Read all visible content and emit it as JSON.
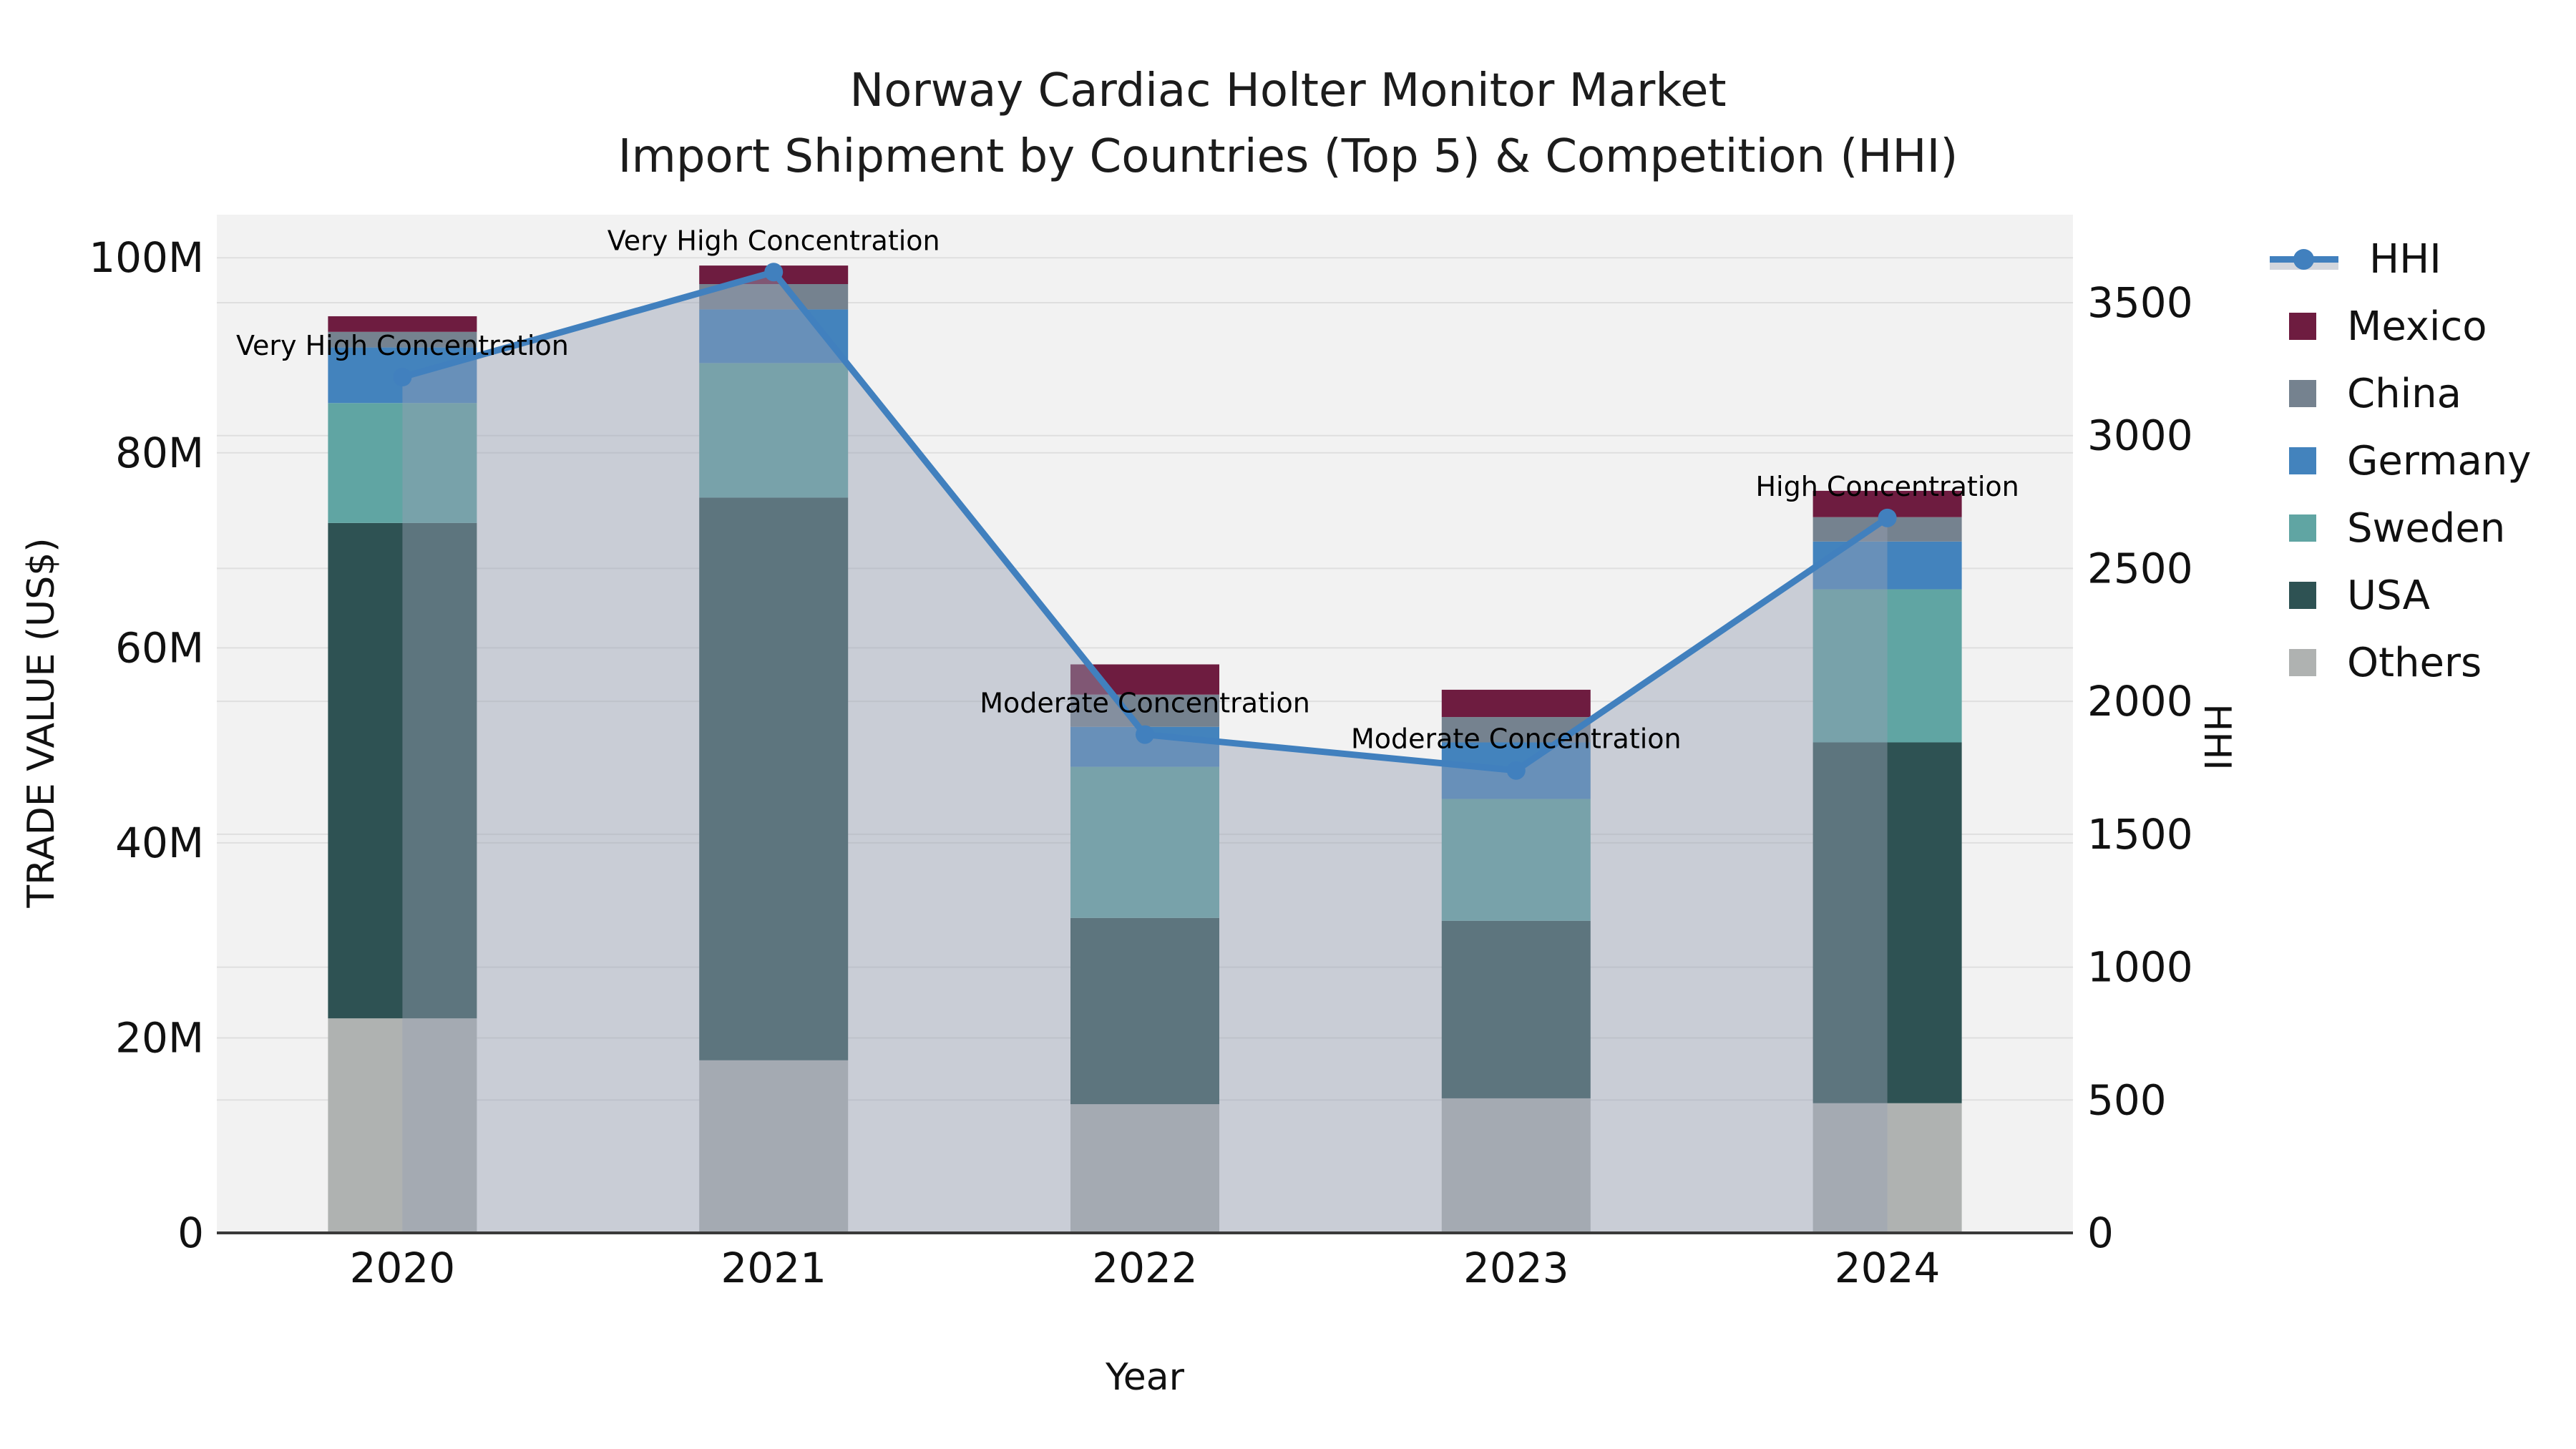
{
  "title": {
    "line1": "Norway Cardiac Holter Monitor Market",
    "line2": "Import Shipment by Countries (Top 5) & Competition (HHI)"
  },
  "axes": {
    "left": {
      "label": "TRADE VALUE (US$)",
      "ticks": [
        {
          "value": 0,
          "label": "0"
        },
        {
          "value": 20,
          "label": "20M"
        },
        {
          "value": 40,
          "label": "40M"
        },
        {
          "value": 60,
          "label": "60M"
        },
        {
          "value": 80,
          "label": "80M"
        },
        {
          "value": 100,
          "label": "100M"
        }
      ]
    },
    "right": {
      "label": "HHI",
      "ticks": [
        {
          "value": 0,
          "label": "0"
        },
        {
          "value": 500,
          "label": "500"
        },
        {
          "value": 1000,
          "label": "1000"
        },
        {
          "value": 1500,
          "label": "1500"
        },
        {
          "value": 2000,
          "label": "2000"
        },
        {
          "value": 2500,
          "label": "2500"
        },
        {
          "value": 3000,
          "label": "3000"
        },
        {
          "value": 3500,
          "label": "3500"
        }
      ]
    },
    "x": {
      "label": "Year"
    }
  },
  "legend": {
    "items": [
      {
        "name": "HHI",
        "type": "line",
        "color": "#4180be"
      },
      {
        "name": "Mexico",
        "type": "swatch",
        "color": "#6e1c40"
      },
      {
        "name": "China",
        "type": "swatch",
        "color": "#75828f"
      },
      {
        "name": "Germany",
        "type": "swatch",
        "color": "#4383bd"
      },
      {
        "name": "Sweden",
        "type": "swatch",
        "color": "#60a5a3"
      },
      {
        "name": "USA",
        "type": "swatch",
        "color": "#2e5253"
      },
      {
        "name": "Others",
        "type": "swatch",
        "color": "#afb2b1"
      }
    ]
  },
  "chart_data": {
    "type": "combo",
    "bar_type": "stacked",
    "categories": [
      "2020",
      "2021",
      "2022",
      "2023",
      "2024"
    ],
    "value_unit": "Million US$",
    "series": [
      {
        "name": "Mexico",
        "color": "#6e1c40",
        "values": [
          1.6,
          1.9,
          3.1,
          2.8,
          2.7
        ]
      },
      {
        "name": "China",
        "color": "#75828f",
        "values": [
          1.6,
          2.6,
          3.3,
          2.6,
          2.5
        ]
      },
      {
        "name": "Germany",
        "color": "#4383bd",
        "values": [
          5.7,
          5.5,
          4.1,
          5.8,
          4.9
        ]
      },
      {
        "name": "Sweden",
        "color": "#60a5a3",
        "values": [
          12.3,
          13.8,
          15.5,
          12.5,
          15.7
        ]
      },
      {
        "name": "USA",
        "color": "#2e5253",
        "values": [
          50.8,
          57.7,
          19.1,
          18.2,
          37.0
        ]
      },
      {
        "name": "Others",
        "color": "#afb2b1",
        "values": [
          22.0,
          17.7,
          13.2,
          13.8,
          13.3
        ]
      }
    ],
    "stack_order_bottom_to_top": [
      "Others",
      "USA",
      "Sweden",
      "Germany",
      "China",
      "Mexico"
    ],
    "bar_totals": [
      94.0,
      99.2,
      58.3,
      55.7,
      76.1
    ],
    "line_series": {
      "name": "HHI",
      "axis": "right",
      "color": "#4180be",
      "area_fill": "rgba(150,160,180,0.45)",
      "values": [
        3220,
        3615,
        1875,
        1740,
        2690
      ],
      "point_annotations": [
        "Very High Concentration",
        "Very High Concentration",
        "Moderate Concentration",
        "Moderate Concentration",
        "High Concentration"
      ]
    },
    "title": "Norway Cardiac Holter Monitor Market Import Shipment by Countries (Top 5) & Competition (HHI)",
    "xlabel": "Year",
    "ylabel_left": "TRADE VALUE (US$)",
    "ylabel_right": "HHI",
    "ylim_left": [
      0,
      104.5
    ],
    "ylim_right": [
      0,
      3836
    ],
    "grid": true,
    "legend_position": "right",
    "plot_background": "#f2f2f2",
    "gridline_color": "#dfdfdf",
    "axis_line_color": "#3a3a3a"
  }
}
